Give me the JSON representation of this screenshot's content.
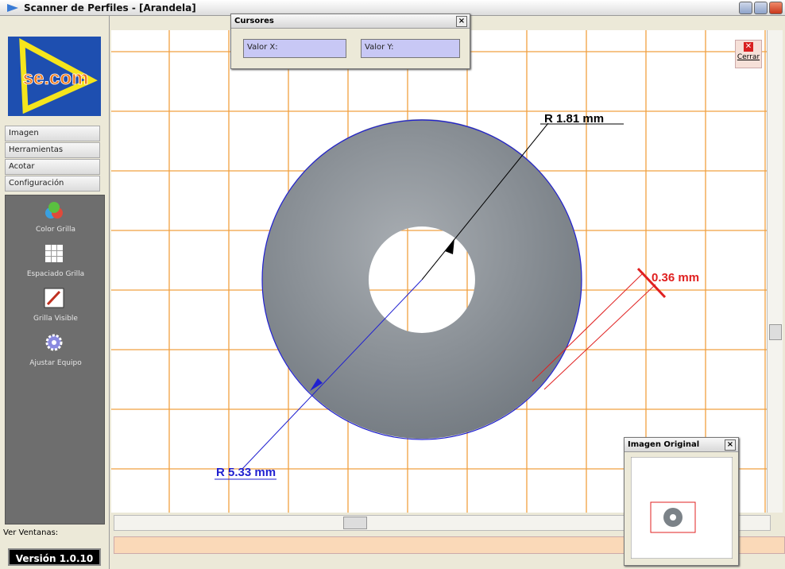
{
  "window": {
    "title": "Scanner de Perfiles - [Arandela]"
  },
  "logo": {
    "text": "se.com"
  },
  "menu": [
    "Imagen",
    "Herramientas",
    "Acotar",
    "Configuración"
  ],
  "tools": [
    "Color Grilla",
    "Espaciado Grilla",
    "Grilla Visible",
    "Ajustar Equipo"
  ],
  "footer": {
    "windows_label": "Ver Ventanas:",
    "version": "Versión 1.0.10"
  },
  "cursors_panel": {
    "title": "Cursores",
    "value_x_label": "Valor X:",
    "value_y_label": "Valor Y:"
  },
  "close_button": {
    "label": "Cerrar"
  },
  "measurements": {
    "inner_radius": "R 1.81 mm",
    "thickness": "0.36 mm",
    "outer_radius": "R 5.33 mm"
  },
  "preview_panel": {
    "title": "Imagen Original"
  }
}
